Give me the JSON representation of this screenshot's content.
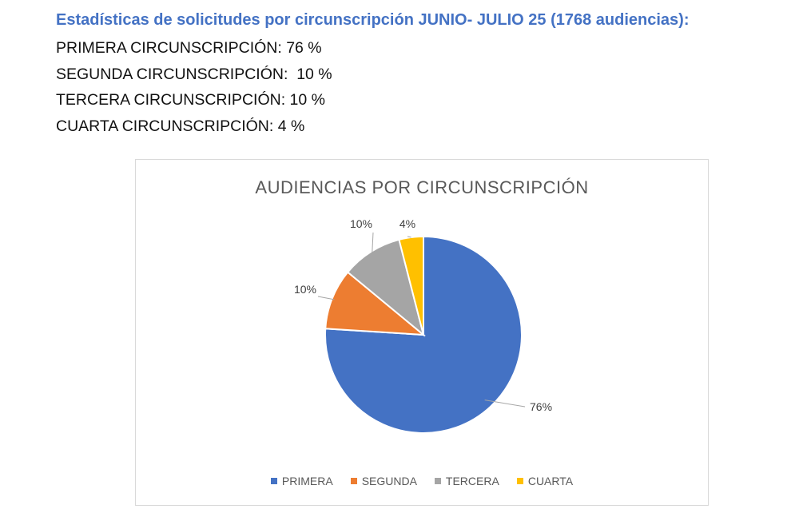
{
  "heading": "Estadísticas de solicitudes por circunscripción JUNIO- JULIO 25 (1768 audiencias):",
  "stats": [
    "PRIMERA CIRCUNSCRIPCIÓN: 76 %",
    "SEGUNDA CIRCUNSCRIPCIÓN:  10 %",
    "TERCERA CIRCUNSCRIPCIÓN: 10 %",
    "CUARTA CIRCUNSCRIPCIÓN: 4 %"
  ],
  "chart_data": {
    "type": "pie",
    "title": "AUDIENCIAS POR CIRCUNSCRIPCIÓN",
    "categories": [
      "PRIMERA",
      "SEGUNDA",
      "TERCERA",
      "CUARTA"
    ],
    "values": [
      76,
      10,
      10,
      4
    ],
    "data_labels": [
      "76%",
      "10%",
      "10%",
      "4%"
    ],
    "colors": [
      "#4472c4",
      "#ed7d31",
      "#a5a5a5",
      "#ffc000"
    ],
    "legend_position": "bottom",
    "start": "12 o'clock, clockwise"
  }
}
